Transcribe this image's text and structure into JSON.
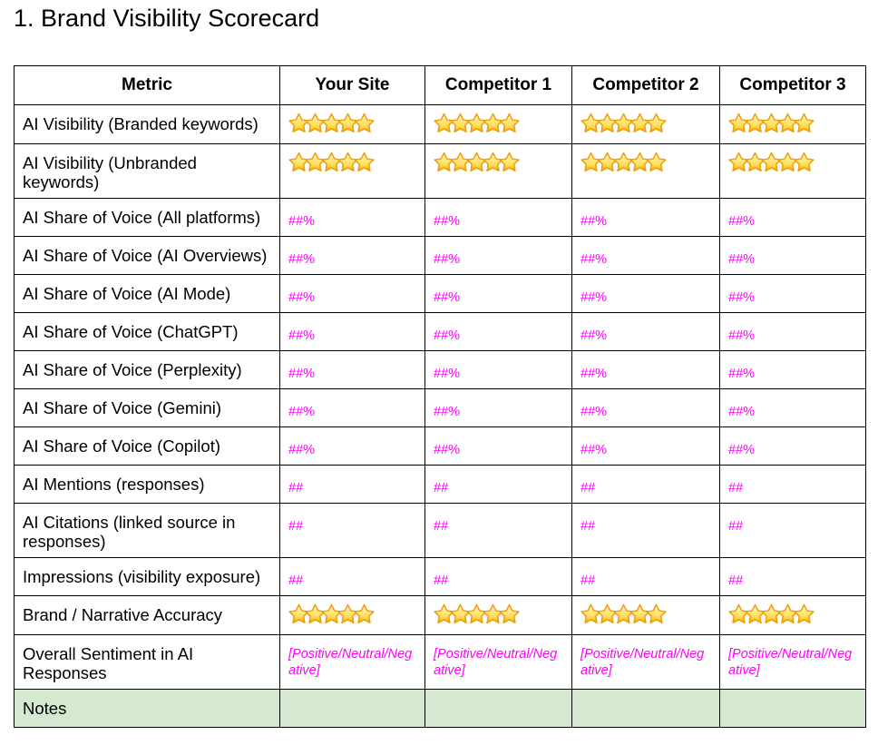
{
  "page_title": "1. Brand Visibility Scorecard",
  "colors": {
    "value_text": "#FF00FF",
    "notes_bg": "#D5E8D0",
    "border": "#000000",
    "star_top": "#FFFBE2",
    "star_mid": "#FFD94F",
    "star_bottom": "#F5A000",
    "star_outline": "#EC9F0B"
  },
  "table": {
    "columns": [
      "Metric",
      "Your Site",
      "Competitor 1",
      "Competitor 2",
      "Competitor 3"
    ],
    "rows": [
      {
        "metric": "AI Visibility (Branded keywords)",
        "type": "stars",
        "values": [
          5,
          5,
          5,
          5
        ]
      },
      {
        "metric": "AI Visibility (Unbranded keywords)",
        "type": "stars",
        "values": [
          5,
          5,
          5,
          5
        ]
      },
      {
        "metric": "AI Share of Voice (All platforms)",
        "type": "percent",
        "values": [
          "##%",
          "##%",
          "##%",
          "##%"
        ]
      },
      {
        "metric": "AI Share of Voice (AI Overviews)",
        "type": "percent",
        "values": [
          "##%",
          "##%",
          "##%",
          "##%"
        ]
      },
      {
        "metric": "AI Share of Voice (AI Mode)",
        "type": "percent",
        "values": [
          "##%",
          "##%",
          "##%",
          "##%"
        ]
      },
      {
        "metric": "AI Share of Voice (ChatGPT)",
        "type": "percent",
        "values": [
          "##%",
          "##%",
          "##%",
          "##%"
        ]
      },
      {
        "metric": "AI Share of Voice (Perplexity)",
        "type": "percent",
        "values": [
          "##%",
          "##%",
          "##%",
          "##%"
        ]
      },
      {
        "metric": "AI Share of Voice (Gemini)",
        "type": "percent",
        "values": [
          "##%",
          "##%",
          "##%",
          "##%"
        ]
      },
      {
        "metric": "AI Share of Voice (Copilot)",
        "type": "percent",
        "values": [
          "##%",
          "##%",
          "##%",
          "##%"
        ]
      },
      {
        "metric": "AI Mentions (responses)",
        "type": "count",
        "values": [
          "##",
          "##",
          "##",
          "##"
        ]
      },
      {
        "metric": "AI Citations (linked source in responses)",
        "type": "count",
        "values": [
          "##",
          "##",
          "##",
          "##"
        ]
      },
      {
        "metric": "Impressions (visibility exposure)",
        "type": "count",
        "values": [
          "##",
          "##",
          "##",
          "##"
        ]
      },
      {
        "metric": "Brand / Narrative Accuracy",
        "type": "stars",
        "values": [
          5,
          5,
          5,
          5
        ]
      },
      {
        "metric": "Overall Sentiment in AI Responses",
        "type": "sentiment",
        "values": [
          "[Positive/Neutral/Negative]",
          "[Positive/Neutral/Negative]",
          "[Positive/Neutral/Negative]",
          "[Positive/Neutral/Negative]"
        ]
      },
      {
        "metric": "Notes",
        "type": "empty",
        "highlight": true,
        "values": [
          "",
          "",
          "",
          ""
        ]
      }
    ]
  }
}
